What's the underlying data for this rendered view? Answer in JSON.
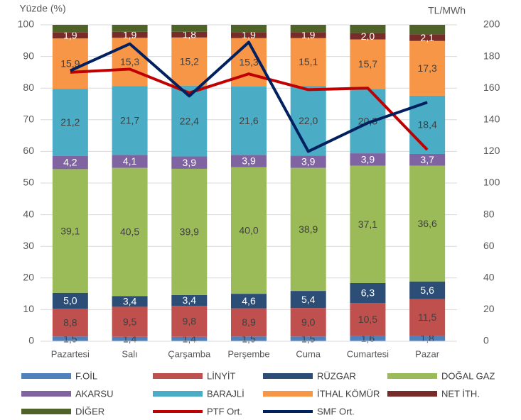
{
  "chart_data": {
    "type": "bar",
    "stacked": true,
    "y_label": "Yüzde (%)",
    "y2_label": "TL/MWh",
    "categories": [
      "Pazartesi",
      "Salı",
      "Çarşamba",
      "Perşembe",
      "Cuma",
      "Cumartesi",
      "Pazar"
    ],
    "ylim": [
      0,
      100
    ],
    "yticks": [
      0,
      10,
      20,
      30,
      40,
      50,
      60,
      70,
      80,
      90,
      100
    ],
    "y2lim": [
      0,
      200
    ],
    "y2ticks": [
      0,
      20,
      40,
      60,
      80,
      100,
      120,
      140,
      160,
      180,
      200
    ],
    "grid": true,
    "legend": "bottom",
    "series": [
      {
        "name": "F.OİL",
        "color": "#4f81bd",
        "label_color": "#404040",
        "values": [
          1.5,
          1.4,
          1.4,
          1.5,
          1.5,
          1.6,
          1.8
        ],
        "value_labels": [
          "1,5",
          "1,4",
          "1,4",
          "1,5",
          "1,5",
          "1,6",
          "1,8"
        ]
      },
      {
        "name": "LİNYİT",
        "color": "#c0504d",
        "label_color": "#404040",
        "values": [
          8.8,
          9.5,
          9.8,
          8.9,
          9.0,
          10.5,
          11.5
        ],
        "value_labels": [
          "8,8",
          "9,5",
          "9,8",
          "8,9",
          "9,0",
          "10,5",
          "11,5"
        ]
      },
      {
        "name": "RÜZGAR",
        "color": "#2c4d75",
        "label_color": "#ffffff",
        "values": [
          5.0,
          3.4,
          3.4,
          4.6,
          5.4,
          6.3,
          5.6
        ],
        "value_labels": [
          "5,0",
          "3,4",
          "3,4",
          "4,6",
          "5,4",
          "6,3",
          "5,6"
        ]
      },
      {
        "name": "DOĞAL GAZ",
        "color": "#9bbb59",
        "label_color": "#404040",
        "values": [
          39.1,
          40.5,
          39.9,
          40.0,
          38.9,
          37.1,
          36.6
        ],
        "value_labels": [
          "39,1",
          "40,5",
          "39,9",
          "40,0",
          "38,9",
          "37,1",
          "36,6"
        ]
      },
      {
        "name": "AKARSU",
        "color": "#8064a2",
        "label_color": "#ffffff",
        "values": [
          4.2,
          4.1,
          3.9,
          3.9,
          3.9,
          3.9,
          3.7
        ],
        "value_labels": [
          "4,2",
          "4,1",
          "3,9",
          "3,9",
          "3,9",
          "3,9",
          "3,7"
        ]
      },
      {
        "name": "BARAJLİ",
        "color": "#4bacc6",
        "label_color": "#404040",
        "values": [
          21.2,
          21.7,
          22.4,
          21.6,
          22.0,
          20.3,
          18.4
        ],
        "value_labels": [
          "21,2",
          "21,7",
          "22,4",
          "21,6",
          "22,0",
          "20,3",
          "18,4"
        ]
      },
      {
        "name": "İTHAL KÖMÜR",
        "color": "#f79646",
        "label_color": "#404040",
        "values": [
          15.9,
          15.3,
          15.2,
          15.3,
          15.1,
          15.7,
          17.3
        ],
        "value_labels": [
          "15,9",
          "15,3",
          "15,2",
          "15,3",
          "15,1",
          "15,7",
          "17,3"
        ]
      },
      {
        "name": "NET İTH.",
        "color": "#772c2a",
        "label_color": "#ffffff",
        "values": [
          1.9,
          1.9,
          1.8,
          1.9,
          1.9,
          2.0,
          2.1
        ],
        "value_labels": [
          "1,9",
          "1,9",
          "1,8",
          "1,9",
          "1,9",
          "2,0",
          "2,1"
        ]
      },
      {
        "name": "DİĞER",
        "color": "#4f6228",
        "values": [
          2.4,
          2.2,
          2.2,
          2.3,
          2.3,
          2.6,
          3.0
        ]
      },
      {
        "name": "PTF Ort.",
        "type": "line",
        "axis": "y2",
        "color": "#c00000",
        "values": [
          170,
          172,
          157,
          169,
          159,
          160,
          121
        ]
      },
      {
        "name": "SMF Ort.",
        "type": "line",
        "axis": "y2",
        "color": "#002060",
        "values": [
          171,
          188,
          155,
          189,
          120,
          138,
          151
        ]
      }
    ]
  }
}
